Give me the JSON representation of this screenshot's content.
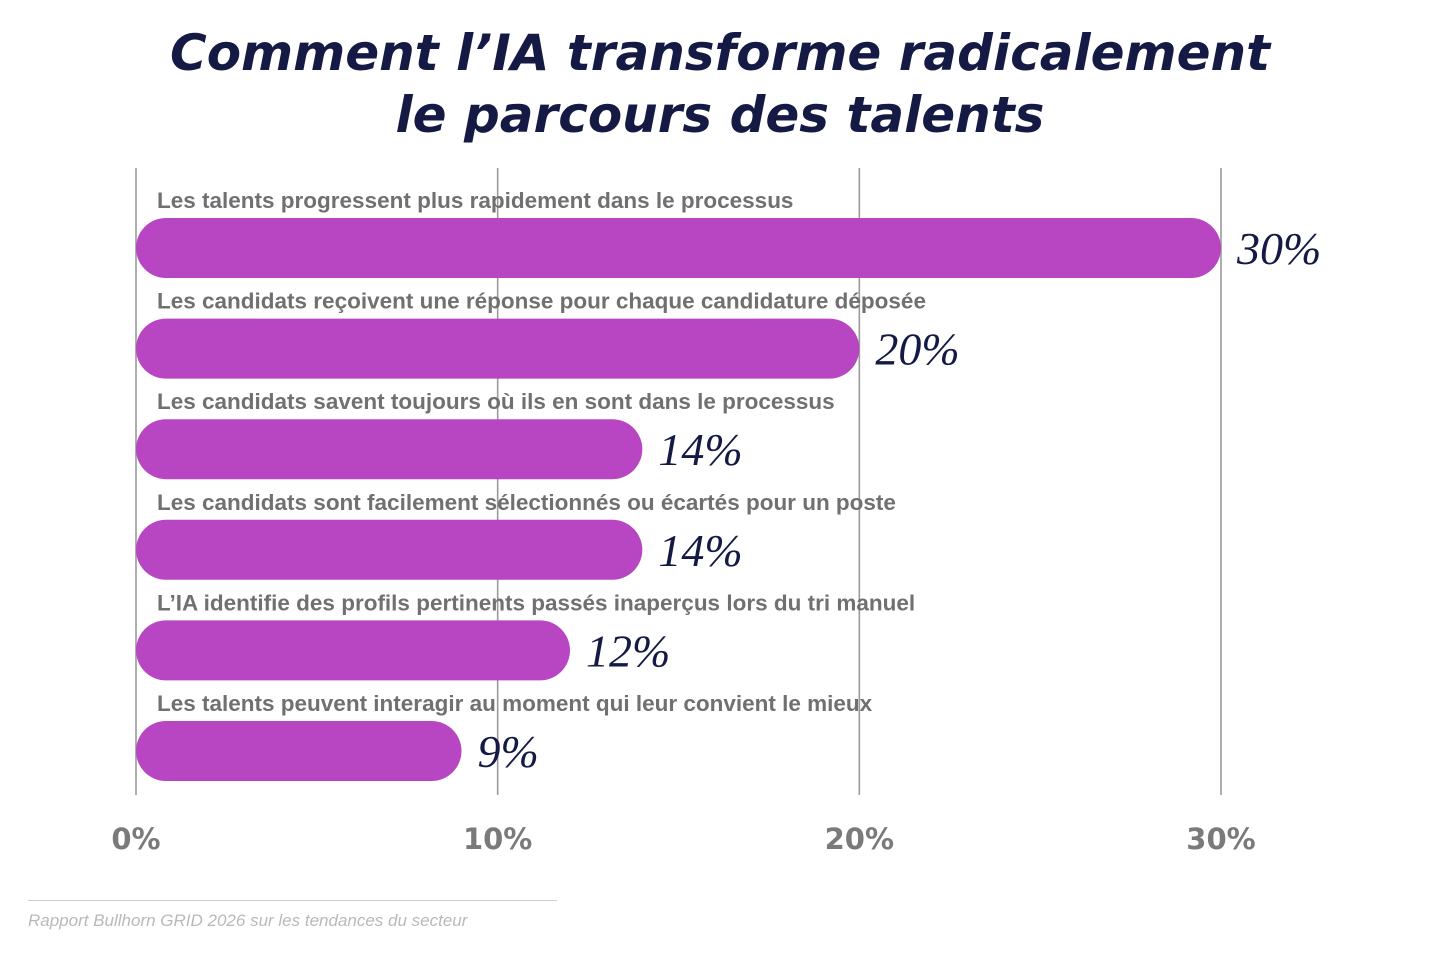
{
  "title_lines": [
    "Comment l’IA transforme radicalement",
    "le parcours des talents"
  ],
  "colors": {
    "bar": "#b846c2",
    "title": "#141a44",
    "value_label": "#141a44",
    "category_label": "#707070",
    "tick_label": "#7a7a7a",
    "gridline": "#9a9a9a"
  },
  "chart_data": {
    "type": "bar",
    "orientation": "horizontal",
    "title": "Comment l’IA transforme radicalement le parcours des talents",
    "categories": [
      "Les talents progressent plus rapidement dans le processus",
      "Les candidats reçoivent une réponse pour chaque candidature déposée",
      "Les candidats savent toujours où ils en sont dans le processus",
      "Les candidats sont facilement sélectionnés ou écartés pour un poste",
      "L’IA identifie des profils pertinents passés inaperçus lors du tri manuel",
      "Les talents peuvent interagir au moment qui leur convient le mieux"
    ],
    "values": [
      30,
      20,
      14,
      14,
      12,
      9
    ],
    "value_labels": [
      "30%",
      "20%",
      "14%",
      "14%",
      "12%",
      "9%"
    ],
    "xlim": [
      0,
      30
    ],
    "x_ticks": [
      0,
      10,
      20,
      30
    ],
    "x_tick_labels": [
      "0%",
      "10%",
      "20%",
      "30%"
    ],
    "grid": true,
    "legend": "none"
  },
  "source": "Rapport Bullhorn GRID 2026 sur les tendances du secteur"
}
